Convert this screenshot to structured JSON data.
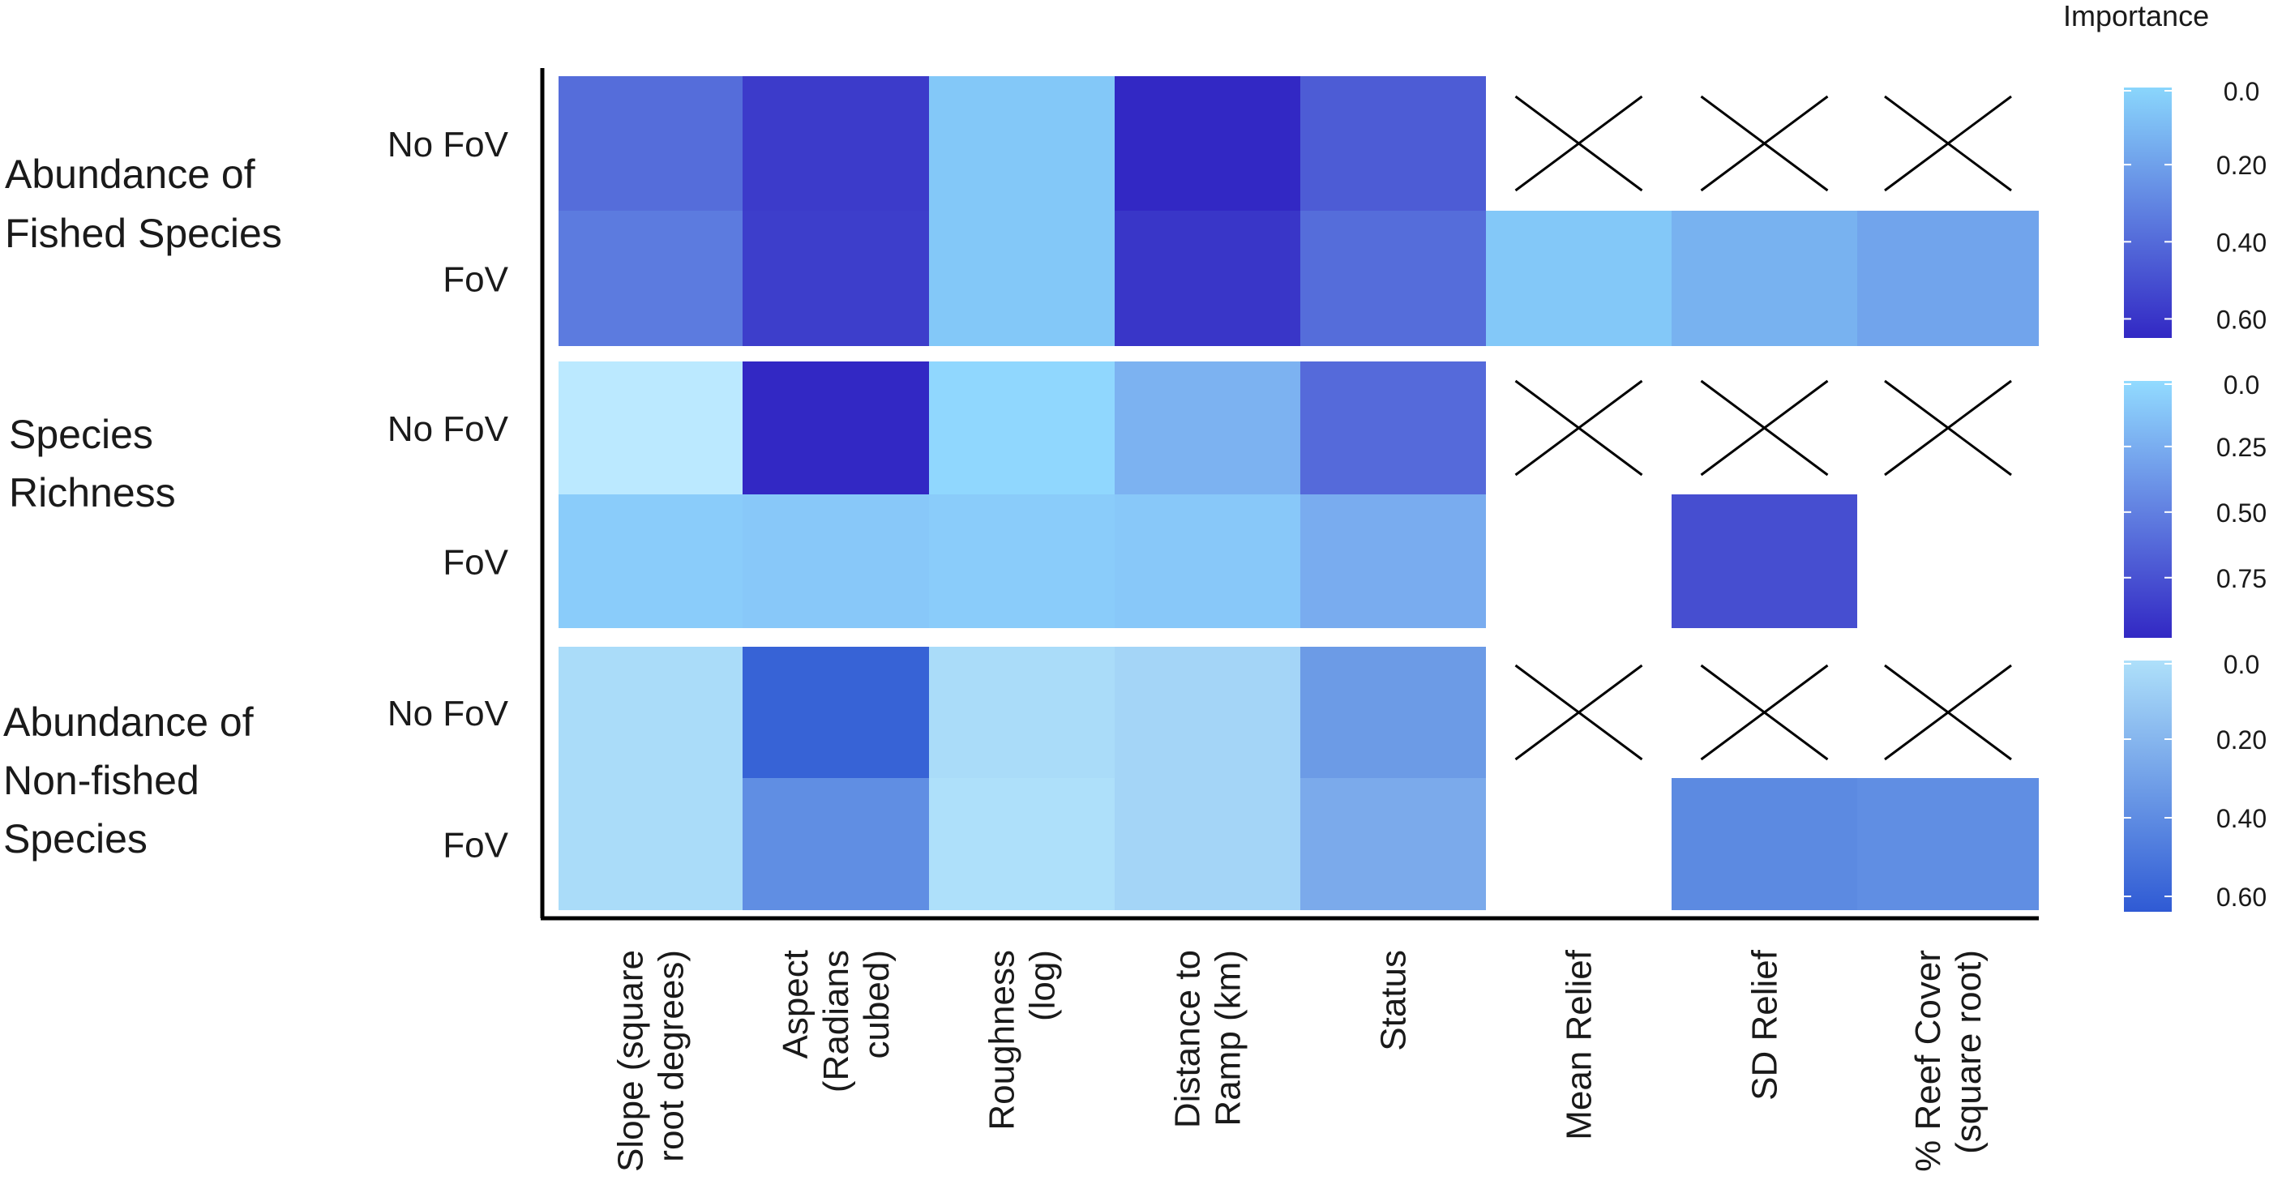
{
  "chart_data": {
    "type": "heatmap",
    "legend_title": "Importance",
    "columns": [
      [
        "Slope (square",
        "root degrees)"
      ],
      [
        "Aspect",
        "(Radians",
        "cubed)"
      ],
      [
        "Roughness",
        "(log)"
      ],
      [
        "Distance to",
        "Ramp (km)"
      ],
      [
        "Status"
      ],
      [
        "Mean Relief"
      ],
      [
        "SD Relief"
      ],
      [
        "% Reef Cover",
        "(square root)"
      ]
    ],
    "row_labels": [
      "No FoV",
      "FoV"
    ],
    "panels": [
      {
        "label": [
          "Abundance of",
          "Fished Species"
        ],
        "scale": {
          "ticks": [
            "0.0",
            "0.20",
            "0.40",
            "0.60"
          ],
          "tick_values": [
            0,
            0.2,
            0.4,
            0.6
          ],
          "max": 0.63,
          "light": "#8ad6fc",
          "dark": "#3228c4"
        },
        "rows": [
          {
            "values": [
              0.38,
              0.56,
              0.05,
              0.63,
              0.44,
              null,
              null,
              null
            ],
            "excluded": [
              false,
              false,
              false,
              false,
              false,
              true,
              true,
              true
            ]
          },
          {
            "values": [
              0.33,
              0.55,
              0.05,
              0.58,
              0.38,
              0.05,
              0.13,
              0.18
            ],
            "excluded": [
              false,
              false,
              false,
              false,
              false,
              false,
              false,
              false
            ]
          }
        ]
      },
      {
        "label": [
          "Species",
          "Richness"
        ],
        "scale": {
          "ticks": [
            "0.0",
            "0.25",
            "0.50",
            "0.75"
          ],
          "tick_values": [
            0,
            0.25,
            0.5,
            0.75
          ],
          "max": 0.95,
          "light": "#92dbff",
          "dark": "#3228c4"
        },
        "rows": [
          {
            "values": [
              -0.12,
              0.95,
              0.02,
              0.22,
              0.6,
              null,
              null,
              null
            ],
            "excluded": [
              false,
              false,
              false,
              false,
              false,
              true,
              true,
              true
            ]
          },
          {
            "values": [
              0.08,
              0.1,
              0.08,
              0.1,
              0.25,
              null,
              0.75,
              null
            ],
            "excluded": [
              false,
              false,
              false,
              false,
              false,
              false,
              false,
              false
            ]
          }
        ]
      },
      {
        "label": [
          "Abundance of",
          "Non-fished",
          "Species"
        ],
        "scale": {
          "ticks": [
            "0.0",
            "0.20",
            "0.40",
            "0.60"
          ],
          "tick_values": [
            0,
            0.2,
            0.4,
            0.6
          ],
          "max": 0.62,
          "light": "#aee0fa",
          "dark": "#2f5ad4"
        },
        "rows": [
          {
            "values": [
              0.02,
              0.58,
              0.02,
              0.05,
              0.32,
              null,
              null,
              null
            ],
            "excluded": [
              false,
              false,
              false,
              false,
              false,
              true,
              true,
              true
            ]
          },
          {
            "values": [
              0.02,
              0.38,
              0.0,
              0.05,
              0.25,
              null,
              0.4,
              0.38
            ],
            "excluded": [
              false,
              false,
              false,
              false,
              false,
              false,
              false,
              false
            ]
          }
        ]
      }
    ]
  }
}
